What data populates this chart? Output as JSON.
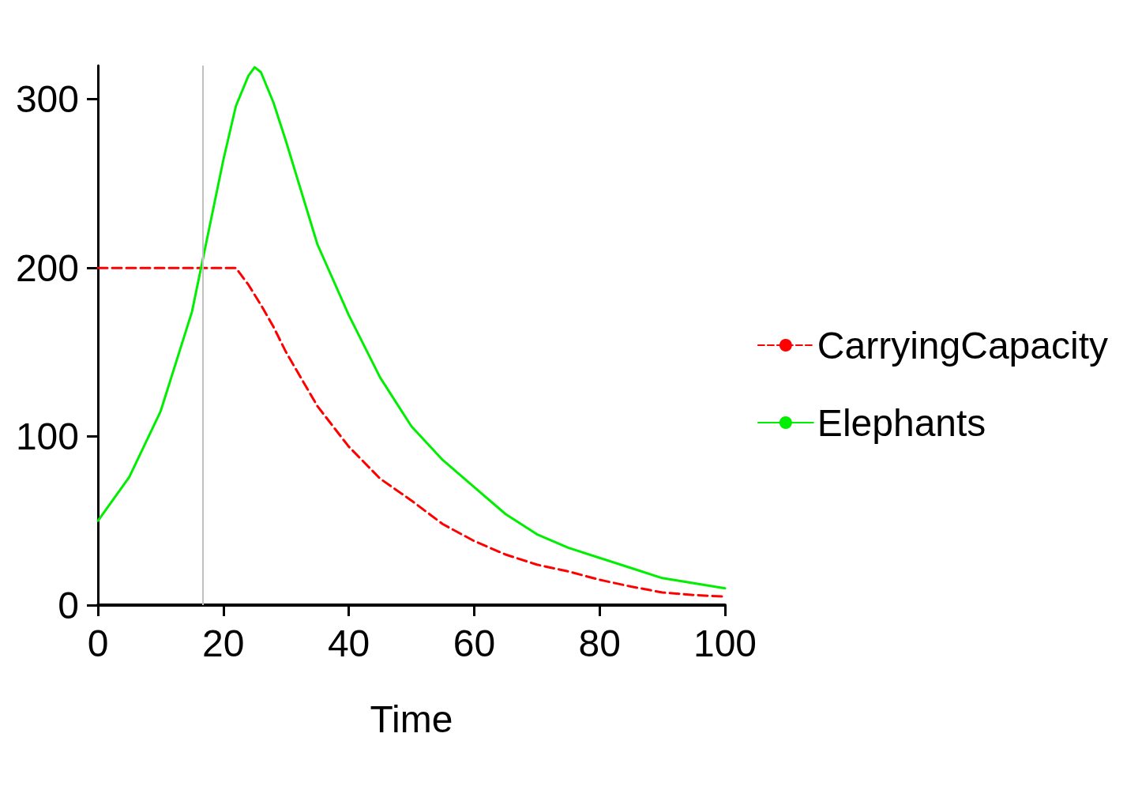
{
  "chart_data": {
    "type": "line",
    "xlabel": "Time",
    "xlim": [
      0,
      100
    ],
    "xticks": [
      0,
      20,
      40,
      60,
      80,
      100
    ],
    "ylim": [
      0,
      320
    ],
    "yticks": [
      0,
      100,
      200,
      300
    ],
    "grid": false,
    "legend": "right",
    "marker": "none",
    "series": [
      {
        "name": "CarryingCapacity",
        "color": "#ff0000",
        "line_style": "dashed",
        "x": [
          0,
          22,
          24,
          26,
          28,
          30,
          35,
          40,
          45,
          50,
          55,
          60,
          65,
          70,
          75,
          80,
          85,
          90,
          95,
          100
        ],
        "values": [
          200,
          200,
          190,
          178,
          165,
          150,
          118,
          94,
          75,
          62,
          48,
          38,
          30,
          24,
          20,
          15,
          11,
          7.5,
          6,
          5
        ]
      },
      {
        "name": "Elephants",
        "color": "#00ee00",
        "line_style": "solid",
        "x": [
          0,
          5,
          10,
          15,
          20,
          22,
          24,
          25,
          26,
          28,
          30,
          35,
          40,
          45,
          50,
          55,
          60,
          65,
          70,
          75,
          80,
          85,
          90,
          95,
          100
        ],
        "values": [
          50,
          76,
          115,
          174,
          264,
          296,
          314,
          319,
          316,
          298,
          275,
          214,
          172,
          135,
          106,
          86,
          70,
          54,
          42,
          34,
          28,
          22,
          16,
          13,
          10
        ]
      }
    ],
    "ref_lines": [
      {
        "axis": "x",
        "value": 16.7,
        "color": "#c0c0c0"
      }
    ]
  }
}
